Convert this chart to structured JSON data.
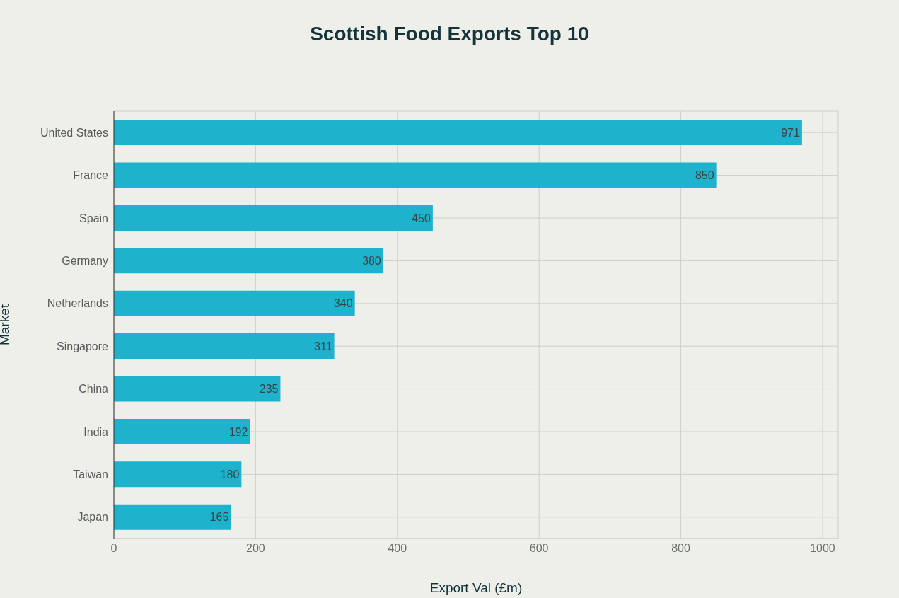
{
  "chart_data": {
    "type": "bar",
    "orientation": "horizontal",
    "title": "Scottish Food Exports Top 10",
    "xlabel": "Export Val (£m)",
    "ylabel": "Market",
    "categories": [
      "United States",
      "France",
      "Spain",
      "Germany",
      "Netherlands",
      "Singapore",
      "China",
      "India",
      "Taiwan",
      "Japan"
    ],
    "values": [
      971,
      850,
      450,
      380,
      340,
      311,
      235,
      192,
      180,
      165
    ],
    "color": "#1fb2cc",
    "xlim": [
      0,
      1022
    ],
    "xticks": [
      0,
      200,
      400,
      600,
      800,
      1000
    ],
    "grid": true,
    "data_labels": true
  }
}
